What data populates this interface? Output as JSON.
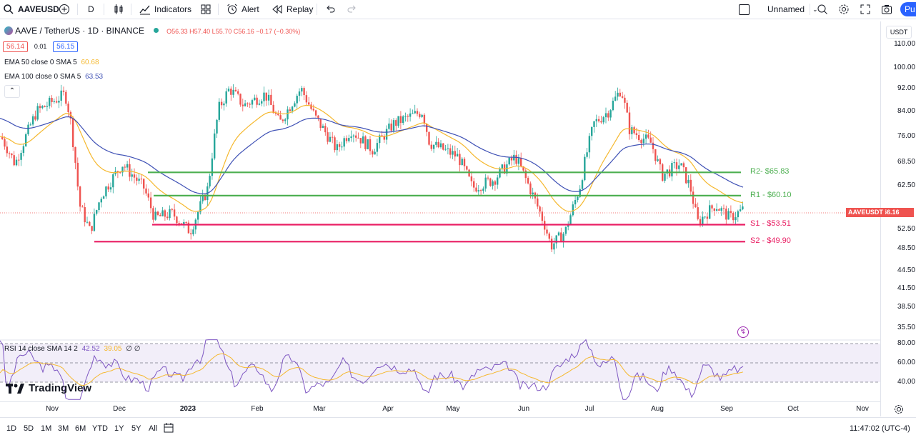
{
  "toolbar": {
    "symbol": "AAVEUSD",
    "interval": "D",
    "indicators_label": "Indicators",
    "alert_label": "Alert",
    "replay_label": "Replay",
    "layout_name": "Unnamed",
    "publish_label": "Pu"
  },
  "legend": {
    "title": "AAVE / TetherUS · 1D · BINANCE",
    "ohlc": "O56.33 H57.40 L55.70 C56.16 −0.17 (−0.30%)",
    "bid": "56.14",
    "spread": "0.01",
    "ask": "56.15",
    "ema50_label": "EMA 50 close 0 SMA 5",
    "ema50_value": "60.68",
    "ema100_label": "EMA 100 close 0 SMA 5",
    "ema100_value": "63.53"
  },
  "rsi_legend": {
    "label": "RSI 14 close SMA 14 2",
    "rsi_value": "42.52",
    "sma_value": "39.05",
    "extra": "∅ ∅"
  },
  "levels": [
    {
      "label": "R2- $65.83",
      "price": 65.83,
      "color": "#4caf50"
    },
    {
      "label": "R1 - $60.10",
      "price": 60.1,
      "color": "#4caf50"
    },
    {
      "label": "S1 - $53.51",
      "price": 53.51,
      "color": "#e91e63"
    },
    {
      "label": "S2 - $49.90",
      "price": 49.9,
      "color": "#e91e63"
    }
  ],
  "price_axis": {
    "currency": "USDT",
    "ticks": [
      "110.00",
      "100.00",
      "92.00",
      "84.00",
      "76.00",
      "68.50",
      "62.50",
      "56.16",
      "52.50",
      "48.50",
      "44.50",
      "41.50",
      "38.50",
      "35.50"
    ],
    "last_price_symbol": "AAVEUSDT",
    "last_price": "56.16",
    "rsi_ticks": [
      "80.00",
      "60.00",
      "40.00"
    ]
  },
  "time_axis": [
    "Nov",
    "Dec",
    "2023",
    "Feb",
    "Mar",
    "Apr",
    "May",
    "Jun",
    "Jul",
    "Aug",
    "Sep",
    "Oct",
    "Nov"
  ],
  "bottom_bar": {
    "ranges": [
      "1D",
      "5D",
      "1M",
      "3M",
      "6M",
      "YTD",
      "1Y",
      "5Y",
      "All"
    ],
    "clock": "11:47:02 (UTC-4)"
  },
  "watermark": "TradingView",
  "colors": {
    "up": "#26a69a",
    "down": "#ef5350",
    "ema50": "#f5b82e",
    "ema100": "#3f51b5",
    "rsi": "#7e57c2",
    "rsi_sma": "#f5b82e"
  }
}
